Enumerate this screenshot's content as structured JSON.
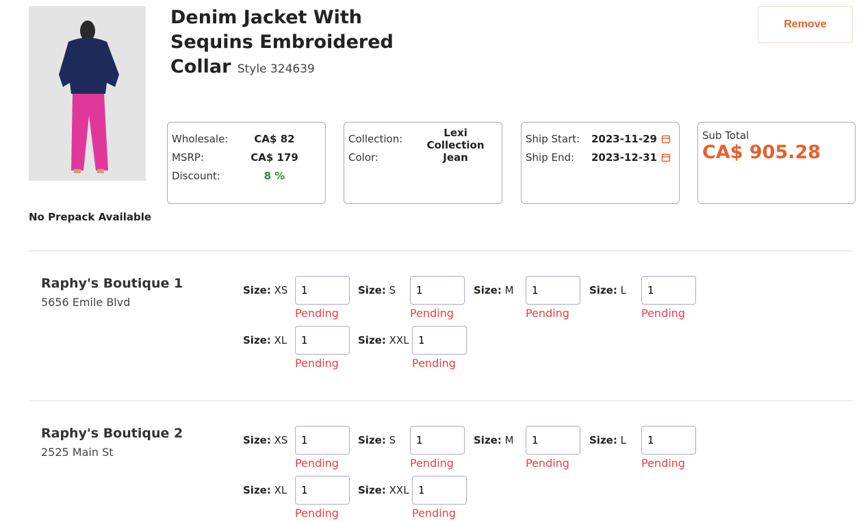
{
  "product": {
    "title": "Denim Jacket With Sequins Embroidered Collar",
    "style": "Style 324639",
    "remove": "Remove",
    "prepack": "No Prepack Available",
    "pricing": {
      "wholesale_label": "Wholesale:",
      "wholesale": "CA$ 82",
      "msrp_label": "MSRP:",
      "msrp": "CA$ 179",
      "discount_label": "Discount:",
      "discount": "8 %"
    },
    "details": {
      "collection_label": "Collection:",
      "collection": "Lexi Collection",
      "color_label": "Color:",
      "color": "Jean"
    },
    "shipping": {
      "start_label": "Ship Start:",
      "start": "2023-11-29",
      "end_label": "Ship End:",
      "end": "2023-12-31"
    },
    "subtotal": {
      "label": "Sub Total",
      "value": "CA$ 905.28"
    }
  },
  "stores": [
    {
      "name": "Raphy's Boutique 1",
      "address": "5656 Emile Blvd",
      "sizes": [
        {
          "label": "Size:",
          "size": "XS",
          "quantity": 1,
          "status": "Pending"
        },
        {
          "label": "Size:",
          "size": "S",
          "quantity": 1,
          "status": "Pending"
        },
        {
          "label": "Size:",
          "size": "M",
          "quantity": 1,
          "status": "Pending"
        },
        {
          "label": "Size:",
          "size": "L",
          "quantity": 1,
          "status": "Pending"
        },
        {
          "label": "Size:",
          "size": "XL",
          "quantity": 1,
          "status": "Pending"
        },
        {
          "label": "Size:",
          "size": "XXL",
          "quantity": 1,
          "status": "Pending"
        }
      ]
    },
    {
      "name": "Raphy's Boutique 2",
      "address": "2525 Main St",
      "sizes": [
        {
          "label": "Size:",
          "size": "XS",
          "quantity": 1,
          "status": "Pending"
        },
        {
          "label": "Size:",
          "size": "S",
          "quantity": 1,
          "status": "Pending"
        },
        {
          "label": "Size:",
          "size": "M",
          "quantity": 1,
          "status": "Pending"
        },
        {
          "label": "Size:",
          "size": "L",
          "quantity": 1,
          "status": "Pending"
        },
        {
          "label": "Size:",
          "size": "XL",
          "quantity": 1,
          "status": "Pending"
        },
        {
          "label": "Size:",
          "size": "XXL",
          "quantity": 1,
          "status": "Pending"
        }
      ]
    }
  ]
}
